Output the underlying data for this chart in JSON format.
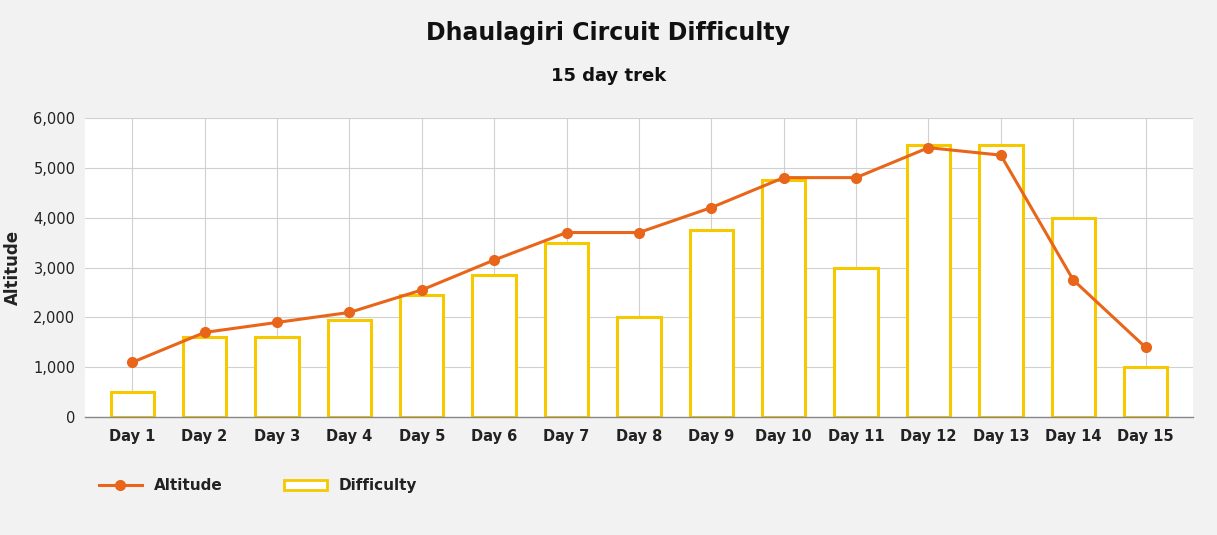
{
  "title": "Dhaulagiri Circuit Difficulty",
  "subtitle": "15 day trek",
  "days": [
    "Day 1",
    "Day 2",
    "Day 3",
    "Day 4",
    "Day 5",
    "Day 6",
    "Day 7",
    "Day 8",
    "Day 9",
    "Day 10",
    "Day 11",
    "Day 12",
    "Day 13",
    "Day 14",
    "Day 15"
  ],
  "altitude": [
    1100,
    1700,
    1900,
    2100,
    2550,
    3150,
    3700,
    3700,
    4200,
    4800,
    4800,
    5400,
    5250,
    2750,
    1400
  ],
  "difficulty": [
    500,
    1600,
    1600,
    1950,
    2450,
    2850,
    3500,
    2000,
    3750,
    4750,
    3000,
    5450,
    5450,
    4000,
    1000
  ],
  "altitude_color": "#e8651a",
  "difficulty_edge_color": "#f5c800",
  "difficulty_fill": "#ffffff",
  "ylabel": "Altitude",
  "ylim": [
    0,
    6000
  ],
  "yticks": [
    0,
    1000,
    2000,
    3000,
    4000,
    5000,
    6000
  ],
  "background_color": "#f2f2f2",
  "plot_background": "#ffffff",
  "title_fontsize": 17,
  "subtitle_fontsize": 13,
  "bar_width": 0.6
}
